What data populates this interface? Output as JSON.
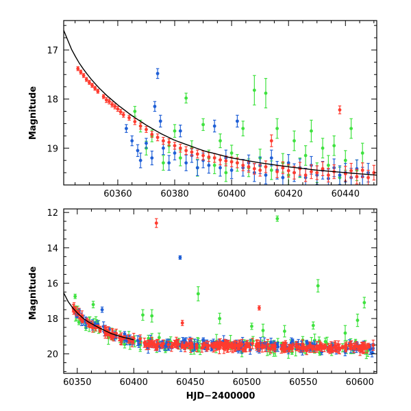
{
  "colors": {
    "red": "#ff3b2f",
    "blue": "#1f5fd6",
    "green": "#3fe23f",
    "model": "#000000"
  },
  "chart_data": [
    {
      "type": "scatter",
      "title": "",
      "xlabel": "",
      "ylabel": "Magnitude",
      "xlim": [
        60341,
        60451
      ],
      "ylim": [
        19.75,
        16.4
      ],
      "y_inverted": true,
      "grid": false,
      "legend": "none",
      "xticks": [
        60360,
        60380,
        60400,
        60420,
        60440
      ],
      "yticks": [
        17,
        18,
        19
      ],
      "model_curve": {
        "color": "#000000",
        "x": [
          60341,
          60344,
          60347,
          60350,
          60353,
          60356,
          60360,
          60365,
          60370,
          60375,
          60380,
          60390,
          60400,
          60410,
          60420,
          60430,
          60440,
          60451
        ],
        "y": [
          16.6,
          17.02,
          17.32,
          17.55,
          17.75,
          17.92,
          18.12,
          18.34,
          18.53,
          18.7,
          18.84,
          19.05,
          19.2,
          19.3,
          19.38,
          19.45,
          19.5,
          19.55
        ]
      },
      "series": [
        {
          "color": "red",
          "points": [
            [
              60346,
              17.38,
              0.04
            ],
            [
              60347,
              17.45,
              0.04
            ],
            [
              60348,
              17.52,
              0.04
            ],
            [
              60349,
              17.6,
              0.04
            ],
            [
              60350,
              17.66,
              0.04
            ],
            [
              60351,
              17.72,
              0.04
            ],
            [
              60352,
              17.78,
              0.04
            ],
            [
              60353,
              17.84,
              0.04
            ],
            [
              60355,
              17.95,
              0.04
            ],
            [
              60356,
              18.02,
              0.05
            ],
            [
              60357,
              18.05,
              0.05
            ],
            [
              60358,
              18.11,
              0.05
            ],
            [
              60359,
              18.15,
              0.05
            ],
            [
              60360,
              18.2,
              0.05
            ],
            [
              60361,
              18.26,
              0.05
            ],
            [
              60362,
              18.32,
              0.05
            ],
            [
              60364,
              18.38,
              0.05
            ],
            [
              60366,
              18.46,
              0.06
            ],
            [
              60368,
              18.55,
              0.06
            ],
            [
              60370,
              18.62,
              0.06
            ],
            [
              60372,
              18.72,
              0.06
            ],
            [
              60374,
              18.78,
              0.07
            ],
            [
              60376,
              18.85,
              0.07
            ],
            [
              60378,
              18.88,
              0.07
            ],
            [
              60380,
              18.95,
              0.07
            ],
            [
              60382,
              19.0,
              0.08
            ],
            [
              60384,
              19.05,
              0.08
            ],
            [
              60386,
              19.08,
              0.08
            ],
            [
              60388,
              19.12,
              0.08
            ],
            [
              60390,
              19.15,
              0.09
            ],
            [
              60392,
              19.18,
              0.09
            ],
            [
              60394,
              19.2,
              0.09
            ],
            [
              60396,
              19.24,
              0.1
            ],
            [
              60398,
              19.26,
              0.1
            ],
            [
              60400,
              19.28,
              0.1
            ],
            [
              60402,
              19.3,
              0.1
            ],
            [
              60404,
              19.35,
              0.11
            ],
            [
              60406,
              19.38,
              0.11
            ],
            [
              60408,
              19.42,
              0.11
            ],
            [
              60410,
              19.45,
              0.12
            ],
            [
              60412,
              19.38,
              0.12
            ],
            [
              60414,
              18.85,
              0.12
            ],
            [
              60416,
              19.48,
              0.12
            ],
            [
              60418,
              19.4,
              0.12
            ],
            [
              60420,
              19.46,
              0.13
            ],
            [
              60422,
              19.5,
              0.13
            ],
            [
              60424,
              19.42,
              0.13
            ],
            [
              60426,
              19.55,
              0.13
            ],
            [
              60428,
              19.48,
              0.14
            ],
            [
              60430,
              19.5,
              0.14
            ],
            [
              60432,
              19.42,
              0.14
            ],
            [
              60434,
              19.55,
              0.14
            ],
            [
              60436,
              19.48,
              0.14
            ],
            [
              60438,
              18.22,
              0.08
            ],
            [
              60440,
              19.52,
              0.15
            ],
            [
              60442,
              19.46,
              0.15
            ],
            [
              60444,
              19.58,
              0.15
            ],
            [
              60446,
              19.45,
              0.15
            ],
            [
              60448,
              19.6,
              0.15
            ],
            [
              60450,
              19.5,
              0.15
            ]
          ]
        },
        {
          "color": "blue",
          "points": [
            [
              60363,
              18.6,
              0.08
            ],
            [
              60365,
              18.85,
              0.1
            ],
            [
              60367,
              19.05,
              0.12
            ],
            [
              60368,
              19.25,
              0.15
            ],
            [
              60370,
              18.9,
              0.1
            ],
            [
              60372,
              19.2,
              0.14
            ],
            [
              60373,
              18.15,
              0.1
            ],
            [
              60374,
              17.48,
              0.1
            ],
            [
              60375,
              18.45,
              0.12
            ],
            [
              60376,
              19.0,
              0.13
            ],
            [
              60378,
              19.3,
              0.15
            ],
            [
              60380,
              19.1,
              0.14
            ],
            [
              60382,
              18.65,
              0.12
            ],
            [
              60384,
              19.3,
              0.16
            ],
            [
              60386,
              19.15,
              0.14
            ],
            [
              60388,
              19.4,
              0.16
            ],
            [
              60390,
              19.25,
              0.15
            ],
            [
              60392,
              19.35,
              0.16
            ],
            [
              60394,
              18.55,
              0.12
            ],
            [
              60396,
              19.4,
              0.17
            ],
            [
              60398,
              19.2,
              0.16
            ],
            [
              60400,
              19.45,
              0.17
            ],
            [
              60402,
              18.45,
              0.12
            ],
            [
              60404,
              19.4,
              0.17
            ],
            [
              60406,
              19.3,
              0.16
            ],
            [
              60408,
              19.5,
              0.18
            ],
            [
              60410,
              19.35,
              0.17
            ],
            [
              60412,
              19.55,
              0.18
            ],
            [
              60414,
              19.2,
              0.16
            ],
            [
              60416,
              19.45,
              0.18
            ],
            [
              60418,
              19.6,
              0.18
            ],
            [
              60420,
              19.3,
              0.17
            ],
            [
              60422,
              19.5,
              0.18
            ],
            [
              60424,
              19.4,
              0.18
            ],
            [
              60426,
              19.6,
              0.19
            ],
            [
              60428,
              19.35,
              0.18
            ],
            [
              60430,
              19.55,
              0.19
            ],
            [
              60432,
              19.45,
              0.18
            ],
            [
              60434,
              19.62,
              0.19
            ],
            [
              60436,
              19.4,
              0.18
            ],
            [
              60438,
              19.55,
              0.19
            ],
            [
              60440,
              19.5,
              0.19
            ],
            [
              60442,
              19.6,
              0.19
            ],
            [
              60444,
              19.42,
              0.18
            ],
            [
              60446,
              19.58,
              0.19
            ],
            [
              60448,
              19.5,
              0.19
            ]
          ]
        },
        {
          "color": "green",
          "points": [
            [
              60366,
              18.25,
              0.1
            ],
            [
              60368,
              18.55,
              0.12
            ],
            [
              60370,
              19.0,
              0.14
            ],
            [
              60372,
              18.75,
              0.12
            ],
            [
              60376,
              19.3,
              0.15
            ],
            [
              60378,
              18.95,
              0.14
            ],
            [
              60380,
              18.65,
              0.13
            ],
            [
              60382,
              19.2,
              0.16
            ],
            [
              60384,
              17.98,
              0.1
            ],
            [
              60386,
              19.0,
              0.15
            ],
            [
              60388,
              19.4,
              0.17
            ],
            [
              60390,
              18.52,
              0.12
            ],
            [
              60392,
              19.2,
              0.16
            ],
            [
              60394,
              19.35,
              0.17
            ],
            [
              60396,
              18.85,
              0.14
            ],
            [
              60398,
              19.5,
              0.18
            ],
            [
              60400,
              19.1,
              0.16
            ],
            [
              60402,
              19.3,
              0.17
            ],
            [
              60404,
              18.6,
              0.15
            ],
            [
              60406,
              19.4,
              0.18
            ],
            [
              60408,
              17.82,
              0.3
            ],
            [
              60410,
              19.2,
              0.18
            ],
            [
              60412,
              17.88,
              0.3
            ],
            [
              60414,
              19.45,
              0.19
            ],
            [
              60416,
              18.6,
              0.2
            ],
            [
              60418,
              19.3,
              0.19
            ],
            [
              60420,
              19.55,
              0.2
            ],
            [
              60422,
              18.85,
              0.2
            ],
            [
              60424,
              19.4,
              0.2
            ],
            [
              60426,
              19.15,
              0.2
            ],
            [
              60428,
              18.65,
              0.22
            ],
            [
              60430,
              19.5,
              0.2
            ],
            [
              60432,
              19.0,
              0.2
            ],
            [
              60434,
              19.35,
              0.2
            ],
            [
              60436,
              18.95,
              0.2
            ],
            [
              60438,
              19.6,
              0.21
            ],
            [
              60440,
              19.25,
              0.2
            ],
            [
              60442,
              18.6,
              0.2
            ],
            [
              60444,
              19.45,
              0.21
            ],
            [
              60446,
              19.1,
              0.2
            ]
          ]
        }
      ]
    },
    {
      "type": "scatter",
      "title": "",
      "xlabel": "HJD−2400000",
      "ylabel": "Magnitude",
      "xlim": [
        60338,
        60615
      ],
      "ylim": [
        21.1,
        11.8
      ],
      "y_inverted": true,
      "grid": false,
      "legend": "none",
      "xticks": [
        60350,
        60400,
        60450,
        60500,
        60550,
        60600
      ],
      "yticks": [
        12,
        14,
        16,
        18,
        20
      ],
      "model_curve": {
        "color": "#000000",
        "x": [
          60338,
          60342,
          60346,
          60350,
          60355,
          60360,
          60370,
          60380,
          60390,
          60400
        ],
        "y": [
          16.55,
          17.05,
          17.4,
          17.68,
          17.98,
          18.2,
          18.55,
          18.85,
          19.05,
          19.2
        ]
      },
      "outliers": [
        {
          "color": "red",
          "x": 60420,
          "y": 12.6,
          "err": 0.25
        },
        {
          "color": "blue",
          "x": 60441,
          "y": 14.55,
          "err": 0.1
        },
        {
          "color": "green",
          "x": 60527,
          "y": 12.35,
          "err": 0.15
        },
        {
          "color": "green",
          "x": 60457,
          "y": 16.6,
          "err": 0.4
        },
        {
          "color": "green",
          "x": 60563,
          "y": 16.15,
          "err": 0.35
        },
        {
          "color": "green",
          "x": 60604,
          "y": 17.1,
          "err": 0.3
        },
        {
          "color": "red",
          "x": 60511,
          "y": 17.4,
          "err": 0.12
        },
        {
          "color": "red",
          "x": 60443,
          "y": 18.25,
          "err": 0.15
        },
        {
          "color": "green",
          "x": 60408,
          "y": 17.8,
          "err": 0.3
        },
        {
          "color": "green",
          "x": 60416,
          "y": 17.85,
          "err": 0.35
        },
        {
          "color": "blue",
          "x": 60372,
          "y": 17.5,
          "err": 0.15
        },
        {
          "color": "green",
          "x": 60598,
          "y": 18.1,
          "err": 0.35
        },
        {
          "color": "green",
          "x": 60476,
          "y": 18.0,
          "err": 0.3
        }
      ],
      "trend": {
        "x": [
          60345,
          60350,
          60355,
          60360,
          60370,
          60380,
          60390,
          60400,
          60420,
          60450,
          60500,
          60550,
          60600,
          60612
        ],
        "y": [
          17.35,
          17.7,
          18.0,
          18.25,
          18.6,
          18.9,
          19.1,
          19.25,
          19.45,
          19.5,
          19.55,
          19.6,
          19.65,
          19.65
        ],
        "scatter": {
          "red": 0.28,
          "blue": 0.35,
          "green": 0.55
        }
      }
    }
  ]
}
